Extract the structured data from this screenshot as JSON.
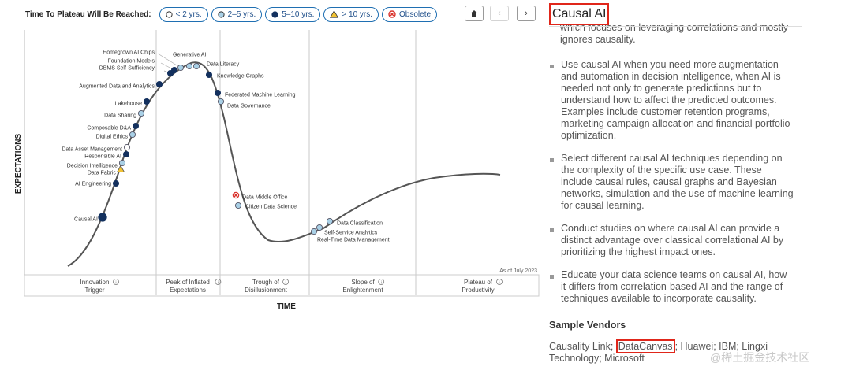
{
  "legend": {
    "title": "Time To Plateau Will Be Reached:",
    "items": [
      {
        "key": "lt2",
        "label": "< 2 yrs.",
        "icon": "white-circle-icon"
      },
      {
        "key": "y2to5",
        "label": "2–5 yrs.",
        "icon": "light-blue-circle-icon"
      },
      {
        "key": "y5to10",
        "label": "5–10 yrs.",
        "icon": "navy-circle-icon"
      },
      {
        "key": "gt10",
        "label": "> 10 yrs.",
        "icon": "yellow-triangle-icon"
      },
      {
        "key": "obsolete",
        "label": "Obsolete",
        "icon": "red-x-icon"
      }
    ]
  },
  "nav": {
    "home": "home-icon",
    "prev": "chevron-left-icon",
    "next": "chevron-right-icon"
  },
  "colors": {
    "navy": "#13305e",
    "lightblue": "#a9d0e6",
    "white": "#ffffff",
    "yellow": "#f2c233",
    "red": "#d9322b",
    "curve": "#555555",
    "accent": "#e0261a"
  },
  "chart": {
    "ylabel": "EXPECTATIONS",
    "xlabel": "TIME",
    "as_of": "As of July 2023",
    "phases": [
      {
        "line1": "Innovation",
        "line2": "Trigger"
      },
      {
        "line1": "Peak of Inflated",
        "line2": "Expectations"
      },
      {
        "line1": "Trough of",
        "line2": "Disillusionment"
      },
      {
        "line1": "Slope of",
        "line2": "Enlightenment"
      },
      {
        "line1": "Plateau of",
        "line2": "Productivity"
      }
    ],
    "points": [
      {
        "label": "Causal AI",
        "type": "5-10",
        "big": true
      },
      {
        "label": "AI Engineering",
        "type": "5-10"
      },
      {
        "label": "Data Fabric",
        "type": ">10"
      },
      {
        "label": "Decision Intelligence",
        "type": "2-5"
      },
      {
        "label": "Responsible AI",
        "type": "5-10"
      },
      {
        "label": "Data Asset Management",
        "type": "<2"
      },
      {
        "label": "Digital Ethics",
        "type": "2-5"
      },
      {
        "label": "Composable D&A",
        "type": "5-10"
      },
      {
        "label": "Data Sharing",
        "type": "2-5"
      },
      {
        "label": "Lakehouse",
        "type": "5-10"
      },
      {
        "label": "Augmented Data and Analytics",
        "type": "5-10"
      },
      {
        "label": "DBMS Self-Sufficiency",
        "type": "5-10"
      },
      {
        "label": "Foundation Models",
        "type": "5-10"
      },
      {
        "label": "Homegrown AI Chips",
        "type": "2-5"
      },
      {
        "label": "Generative AI",
        "type": "2-5"
      },
      {
        "label": "Data Literacy",
        "type": "2-5"
      },
      {
        "label": "Knowledge Graphs",
        "type": "5-10"
      },
      {
        "label": "Federated Machine Learning",
        "type": "5-10"
      },
      {
        "label": "Data Governance",
        "type": "2-5"
      },
      {
        "label": "Data Middle Office",
        "type": "obsolete"
      },
      {
        "label": "Citizen Data Science",
        "type": "2-5"
      },
      {
        "label": "Real-Time Data Management",
        "type": "2-5"
      },
      {
        "label": "Self-Service Analytics",
        "type": "2-5"
      },
      {
        "label": "Data Classification",
        "type": "2-5"
      }
    ]
  },
  "panel": {
    "title": "Causal AI",
    "cut_text": "which focuses on leveraging correlations and mostly ignores causality.",
    "bullets": [
      "Use causal AI when you need more augmentation and automation in decision intelligence, when AI is needed not only to generate predictions but to understand how to affect the predicted outcomes. Examples include customer retention programs, marketing campaign allocation and financial portfolio optimization.",
      "Select different causal AI techniques depending on the complexity of the specific use case. These include causal rules, causal graphs and Bayesian networks, simulation and the use of machine learning for causal learning.",
      "Conduct studies on where causal AI can provide a distinct advantage over classical correlational AI by prioritizing the highest impact ones.",
      "Educate your data science teams on causal AI, how it differs from correlation-based AI and the range of techniques available to incorporate causality."
    ],
    "vendors_heading": "Sample Vendors",
    "vendors_before": "Causality Link; ",
    "vendor_highlight": "DataCanvas",
    "vendors_after": "; Huawei; IBM; Lingxi Technology; Microsoft"
  },
  "watermark": "@稀土掘金技术社区"
}
